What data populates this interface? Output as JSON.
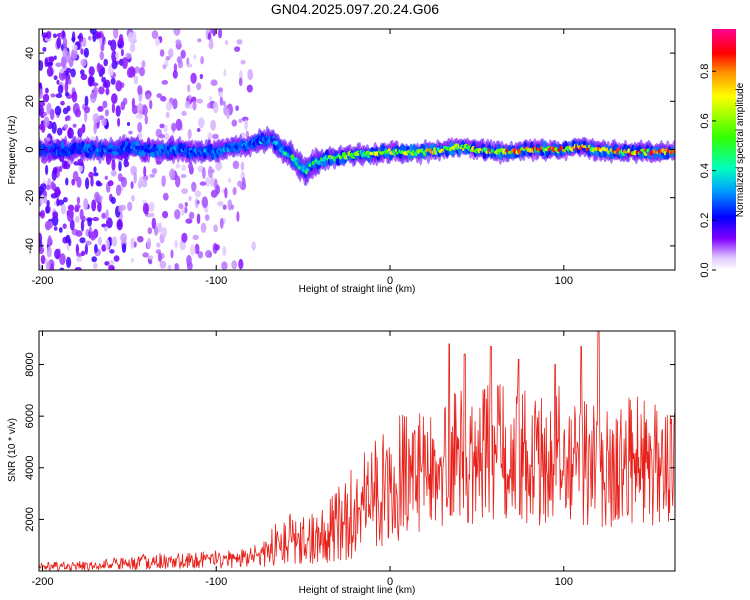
{
  "figure": {
    "title": "GN04.2025.097.20.24.G06"
  },
  "chart_data": [
    {
      "type": "heatmap",
      "xlabel": "Height of straight line (km)",
      "ylabel": "Frequency (Hz)",
      "xlim": [
        -202,
        164
      ],
      "ylim": [
        -50,
        50
      ],
      "xticks": [
        -200,
        -100,
        0,
        100
      ],
      "yticks": [
        -40,
        -20,
        0,
        20,
        40
      ],
      "colorbar": {
        "label": "Normalized spectral amplitude",
        "range": [
          0,
          0.97
        ],
        "ticks": [
          0.0,
          0.2,
          0.4,
          0.6,
          0.8
        ],
        "colormap": [
          "#ffffff",
          "#c8a0ff",
          "#8000ff",
          "#0000ff",
          "#00c8ff",
          "#00ff80",
          "#40ff00",
          "#ffff00",
          "#ff9000",
          "#ff0000",
          "#ff0090"
        ]
      },
      "ridge": {
        "x": [
          -202,
          -185,
          -170,
          -160,
          -150,
          -140,
          -130,
          -120,
          -110,
          -100,
          -90,
          -80,
          -72,
          -68,
          -62,
          -58,
          -52,
          -48,
          -44,
          -38,
          -30,
          -20,
          -10,
          0,
          10,
          20,
          30,
          40,
          50,
          60,
          70,
          80,
          90,
          100,
          110,
          120,
          130,
          140,
          150,
          164
        ],
        "y": [
          0,
          0,
          0,
          0,
          1,
          0,
          0,
          0,
          -1,
          -1,
          1,
          2,
          4,
          4,
          0,
          -2,
          -7,
          -9,
          -6,
          -4,
          -3,
          -2,
          -2,
          -1,
          -1,
          -1,
          0,
          1,
          0,
          -1,
          -1,
          0,
          0,
          0,
          1,
          0,
          -1,
          -1,
          -1,
          -1
        ],
        "amplitude": [
          0.25,
          0.25,
          0.3,
          0.3,
          0.3,
          0.3,
          0.3,
          0.32,
          0.3,
          0.35,
          0.32,
          0.3,
          0.38,
          0.3,
          0.45,
          0.5,
          0.5,
          0.45,
          0.5,
          0.55,
          0.6,
          0.62,
          0.65,
          0.7,
          0.72,
          0.75,
          0.7,
          0.72,
          0.75,
          0.78,
          0.8,
          0.82,
          0.85,
          0.8,
          0.8,
          0.78,
          0.82,
          0.85,
          0.88,
          0.9
        ]
      },
      "scatter_region": {
        "xmin": -202,
        "xmax": -78
      }
    },
    {
      "type": "line",
      "xlabel": "Height of straight line (km)",
      "ylabel": "SNR (10 * v/v)",
      "xlim": [
        -202,
        164
      ],
      "ylim": [
        0,
        9300
      ],
      "xticks": [
        -200,
        -100,
        0,
        100
      ],
      "yticks": [
        2000,
        4000,
        6000,
        8000
      ],
      "series": [
        {
          "color": "#e8201a",
          "envelope": {
            "x": [
              -202,
              -180,
              -160,
              -140,
              -120,
              -100,
              -90,
              -80,
              -70,
              -60,
              -50,
              -40,
              -30,
              -20,
              -10,
              0,
              10,
              20,
              30,
              40,
              50,
              60,
              70,
              80,
              90,
              100,
              110,
              120,
              130,
              140,
              150,
              164
            ],
            "low": [
              0,
              0,
              20,
              40,
              50,
              50,
              60,
              80,
              150,
              250,
              200,
              200,
              300,
              500,
              800,
              1000,
              1200,
              1400,
              1600,
              1800,
              1800,
              1900,
              1800,
              1700,
              1700,
              1700,
              1600,
              1600,
              1600,
              1600,
              1600,
              1600
            ],
            "mean": [
              180,
              200,
              250,
              300,
              350,
              400,
              450,
              600,
              900,
              1200,
              1000,
              1300,
              1700,
              2300,
              2900,
              3300,
              3500,
              3700,
              3900,
              4000,
              4100,
              4200,
              4000,
              4100,
              4000,
              4200,
              4000,
              4100,
              3900,
              4000,
              3900,
              3900
            ],
            "high": [
              350,
              400,
              500,
              700,
              700,
              800,
              800,
              1000,
              1500,
              2300,
              2200,
              2500,
              3300,
              4300,
              5200,
              6000,
              6300,
              6500,
              7000,
              7200,
              7000,
              7500,
              7100,
              7400,
              7000,
              7300,
              7000,
              7100,
              6800,
              6900,
              6700,
              6600
            ]
          },
          "peaks": [
            {
              "x": 34,
              "y": 8800
            },
            {
              "x": 43,
              "y": 8400
            },
            {
              "x": 58,
              "y": 8700
            },
            {
              "x": 74,
              "y": 8200
            },
            {
              "x": 95,
              "y": 8000
            },
            {
              "x": 110,
              "y": 8700
            },
            {
              "x": 120,
              "y": 9300
            }
          ]
        }
      ]
    }
  ]
}
